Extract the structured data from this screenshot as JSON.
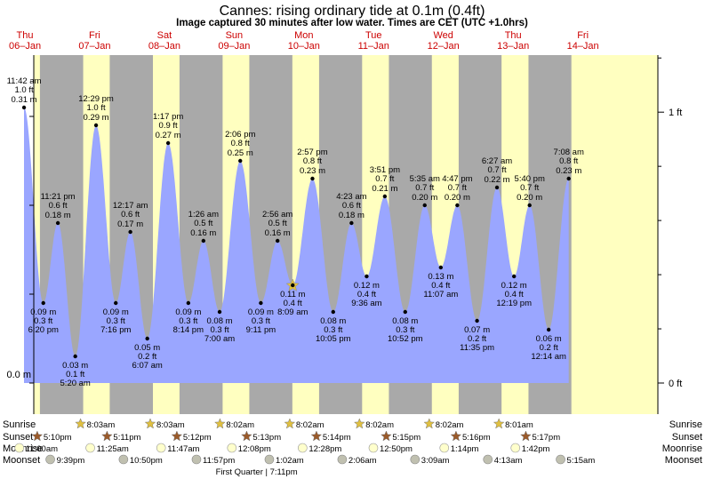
{
  "header": {
    "title": "Cannes: rising  ordinary tide at 0.1m (0.4ft)",
    "subtitle": "Image captured 30 minutes after low water. Times are CET (UTC +1.0hrs)"
  },
  "colors": {
    "day": "#ffffc0",
    "night": "#a9a9a9",
    "tide_fill": "#9aa6ff",
    "day_label": "#cc0000",
    "sun": "#e0c040",
    "sunset": "#9a5a2a",
    "moonrise": "#ffffcc",
    "moonset": "#c0c0b0"
  },
  "chart_data": {
    "type": "area",
    "title": "Cannes: rising  ordinary tide at 0.1m (0.4ft)",
    "days": [
      {
        "dow": "Thu",
        "date": "06–Jan"
      },
      {
        "dow": "Fri",
        "date": "07–Jan"
      },
      {
        "dow": "Sat",
        "date": "08–Jan"
      },
      {
        "dow": "Sun",
        "date": "09–Jan"
      },
      {
        "dow": "Mon",
        "date": "10–Jan"
      },
      {
        "dow": "Tue",
        "date": "11–Jan"
      },
      {
        "dow": "Wed",
        "date": "12–Jan"
      },
      {
        "dow": "Thu",
        "date": "13–Jan"
      },
      {
        "dow": "Fri",
        "date": "14–Jan"
      }
    ],
    "y_axis_left": {
      "unit": "m",
      "ticks": [
        {
          "value": 0.0,
          "label": "0.0 m"
        }
      ]
    },
    "y_axis_right": {
      "unit": "ft",
      "ticks": [
        {
          "value": 0,
          "label": "0 ft"
        },
        {
          "value": 1,
          "label": "1 ft"
        }
      ]
    },
    "ylim_m": [
      -0.01,
      0.36
    ],
    "tides": [
      {
        "type": "high",
        "day": 0,
        "time": "11:42 am",
        "ft": "1.0 ft",
        "m": 0.31,
        "m_label": "0.31 m"
      },
      {
        "type": "low",
        "day": 0,
        "time": "6:20 pm",
        "ft": "0.3 ft",
        "m": 0.09,
        "m_label": "0.09 m"
      },
      {
        "type": "high",
        "day": 0,
        "time": "11:21 pm",
        "ft": "0.6 ft",
        "m": 0.18,
        "m_label": "0.18 m"
      },
      {
        "type": "low",
        "day": 1,
        "time": "5:20 am",
        "ft": "0.1 ft",
        "m": 0.03,
        "m_label": "0.03 m"
      },
      {
        "type": "high",
        "day": 1,
        "time": "12:29 pm",
        "ft": "1.0 ft",
        "m": 0.29,
        "m_label": "0.29 m"
      },
      {
        "type": "low",
        "day": 1,
        "time": "7:16 pm",
        "ft": "0.3 ft",
        "m": 0.09,
        "m_label": "0.09 m"
      },
      {
        "type": "high",
        "day": 2,
        "time": "12:17 am",
        "ft": "0.6 ft",
        "m": 0.17,
        "m_label": "0.17 m"
      },
      {
        "type": "low",
        "day": 2,
        "time": "6:07 am",
        "ft": "0.2 ft",
        "m": 0.05,
        "m_label": "0.05 m"
      },
      {
        "type": "high",
        "day": 2,
        "time": "1:17 pm",
        "ft": "0.9 ft",
        "m": 0.27,
        "m_label": "0.27 m"
      },
      {
        "type": "low",
        "day": 2,
        "time": "8:14 pm",
        "ft": "0.3 ft",
        "m": 0.09,
        "m_label": "0.09 m"
      },
      {
        "type": "high",
        "day": 3,
        "time": "1:26 am",
        "ft": "0.5 ft",
        "m": 0.16,
        "m_label": "0.16 m"
      },
      {
        "type": "low",
        "day": 3,
        "time": "7:00 am",
        "ft": "0.3 ft",
        "m": 0.08,
        "m_label": "0.08 m"
      },
      {
        "type": "high",
        "day": 3,
        "time": "2:06 pm",
        "ft": "0.8 ft",
        "m": 0.25,
        "m_label": "0.25 m"
      },
      {
        "type": "low",
        "day": 3,
        "time": "9:11 pm",
        "ft": "0.3 ft",
        "m": 0.09,
        "m_label": "0.09 m"
      },
      {
        "type": "high",
        "day": 4,
        "time": "2:56 am",
        "ft": "0.5 ft",
        "m": 0.16,
        "m_label": "0.16 m"
      },
      {
        "type": "low",
        "day": 4,
        "time": "8:09 am",
        "ft": "0.4 ft",
        "m": 0.11,
        "m_label": "0.11 m",
        "current": true
      },
      {
        "type": "high",
        "day": 4,
        "time": "2:57 pm",
        "ft": "0.8 ft",
        "m": 0.23,
        "m_label": "0.23 m"
      },
      {
        "type": "low",
        "day": 4,
        "time": "10:05 pm",
        "ft": "0.3 ft",
        "m": 0.08,
        "m_label": "0.08 m"
      },
      {
        "type": "high",
        "day": 5,
        "time": "4:23 am",
        "ft": "0.6 ft",
        "m": 0.18,
        "m_label": "0.18 m"
      },
      {
        "type": "low",
        "day": 5,
        "time": "9:36 am",
        "ft": "0.4 ft",
        "m": 0.12,
        "m_label": "0.12 m"
      },
      {
        "type": "high",
        "day": 5,
        "time": "3:51 pm",
        "ft": "0.7 ft",
        "m": 0.21,
        "m_label": "0.21 m"
      },
      {
        "type": "low",
        "day": 5,
        "time": "10:52 pm",
        "ft": "0.3 ft",
        "m": 0.08,
        "m_label": "0.08 m"
      },
      {
        "type": "high",
        "day": 6,
        "time": "5:35 am",
        "ft": "0.7 ft",
        "m": 0.2,
        "m_label": "0.20 m"
      },
      {
        "type": "low",
        "day": 6,
        "time": "11:07 am",
        "ft": "0.4 ft",
        "m": 0.13,
        "m_label": "0.13 m"
      },
      {
        "type": "high",
        "day": 6,
        "time": "4:47 pm",
        "ft": "0.7 ft",
        "m": 0.2,
        "m_label": "0.20 m"
      },
      {
        "type": "low",
        "day": 6,
        "time": "11:35 pm",
        "ft": "0.2 ft",
        "m": 0.07,
        "m_label": "0.07 m"
      },
      {
        "type": "high",
        "day": 7,
        "time": "6:27 am",
        "ft": "0.7 ft",
        "m": 0.22,
        "m_label": "0.22 m"
      },
      {
        "type": "low",
        "day": 7,
        "time": "12:19 pm",
        "ft": "0.4 ft",
        "m": 0.12,
        "m_label": "0.12 m"
      },
      {
        "type": "high",
        "day": 7,
        "time": "5:40 pm",
        "ft": "0.7 ft",
        "m": 0.2,
        "m_label": "0.20 m"
      },
      {
        "type": "low",
        "day": 8,
        "time": "12:14 am",
        "ft": "0.2 ft",
        "m": 0.06,
        "m_label": "0.06 m"
      },
      {
        "type": "high",
        "day": 8,
        "time": "7:08 am",
        "ft": "0.8 ft",
        "m": 0.23,
        "m_label": "0.23 m"
      }
    ],
    "sunrise": [
      {
        "day": 1,
        "time": "8:03am"
      },
      {
        "day": 2,
        "time": "8:03am"
      },
      {
        "day": 3,
        "time": "8:02am"
      },
      {
        "day": 4,
        "time": "8:02am"
      },
      {
        "day": 5,
        "time": "8:02am"
      },
      {
        "day": 6,
        "time": "8:02am"
      },
      {
        "day": 7,
        "time": "8:01am"
      }
    ],
    "sunset": [
      {
        "day": 0,
        "time": "5:10pm"
      },
      {
        "day": 1,
        "time": "5:11pm"
      },
      {
        "day": 2,
        "time": "5:12pm"
      },
      {
        "day": 3,
        "time": "5:13pm"
      },
      {
        "day": 4,
        "time": "5:14pm"
      },
      {
        "day": 5,
        "time": "5:15pm"
      },
      {
        "day": 6,
        "time": "5:16pm"
      },
      {
        "day": 7,
        "time": "5:17pm"
      }
    ],
    "moonrise": [
      {
        "day": 0,
        "time": "11:00am"
      },
      {
        "day": 1,
        "time": "11:25am"
      },
      {
        "day": 2,
        "time": "11:47am"
      },
      {
        "day": 3,
        "time": "12:08pm"
      },
      {
        "day": 4,
        "time": "12:28pm"
      },
      {
        "day": 5,
        "time": "12:50pm"
      },
      {
        "day": 6,
        "time": "1:14pm"
      },
      {
        "day": 7,
        "time": "1:42pm"
      }
    ],
    "moonset": [
      {
        "day": 0,
        "time": "9:39pm"
      },
      {
        "day": 1,
        "time": "10:50pm"
      },
      {
        "day": 2,
        "time": "11:57pm"
      },
      {
        "day": 4,
        "time": "1:02am"
      },
      {
        "day": 5,
        "time": "2:06am"
      },
      {
        "day": 6,
        "time": "3:09am"
      },
      {
        "day": 7,
        "time": "4:13am"
      },
      {
        "day": 8,
        "time": "5:15am"
      }
    ],
    "moon_phase": {
      "day": 4,
      "text": "First Quarter | 7:11pm"
    }
  },
  "rows": {
    "sunrise": "Sunrise",
    "sunset": "Sunset",
    "moonrise": "Moonrise",
    "moonset": "Moonset"
  }
}
